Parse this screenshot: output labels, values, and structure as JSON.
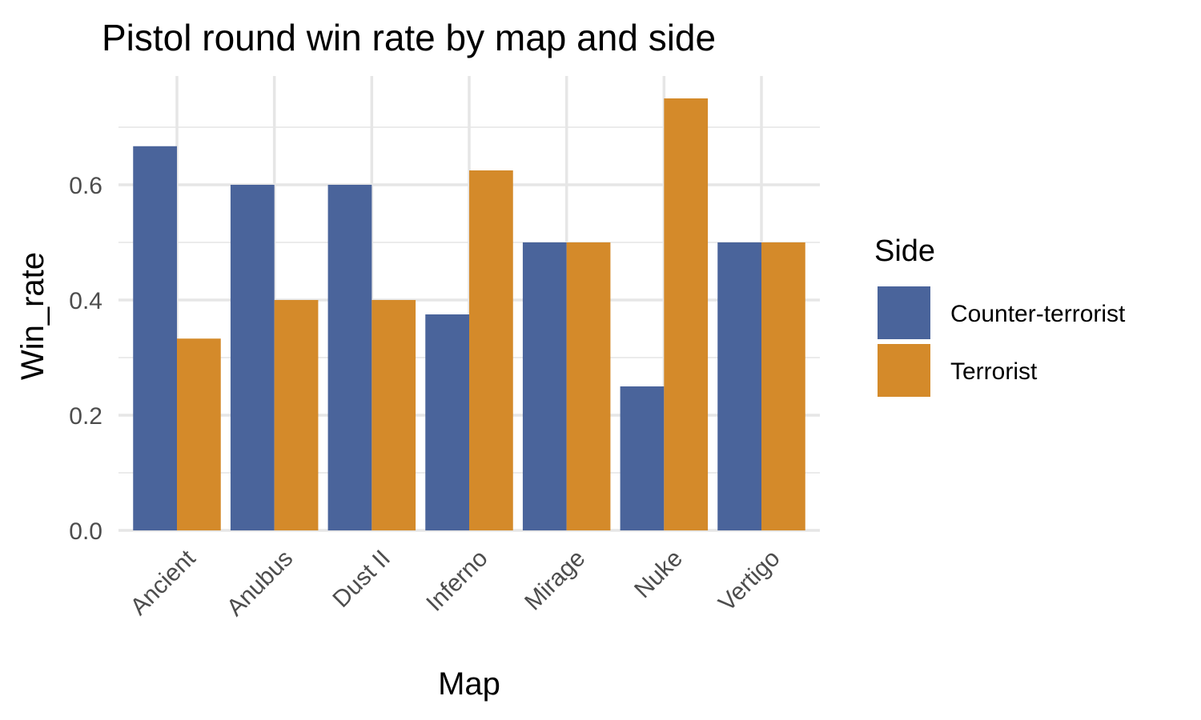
{
  "chart_data": {
    "type": "bar",
    "title": "Pistol round win rate by map and side",
    "xlabel": "Map",
    "ylabel": "Win_rate",
    "categories": [
      "Ancient",
      "Anubus",
      "Dust II",
      "Inferno",
      "Mirage",
      "Nuke",
      "Vertigo"
    ],
    "series": [
      {
        "name": "Counter-terrorist",
        "color": "#4a649b",
        "values": [
          0.667,
          0.6,
          0.6,
          0.375,
          0.5,
          0.25,
          0.5
        ]
      },
      {
        "name": "Terrorist",
        "color": "#d48a2a",
        "values": [
          0.333,
          0.4,
          0.4,
          0.625,
          0.5,
          0.75,
          0.5
        ]
      }
    ],
    "ylim": [
      0,
      0.75
    ],
    "yticks": [
      "0.0",
      "0.2",
      "0.4",
      "0.6"
    ],
    "grid": true,
    "legend": {
      "title": "Side",
      "position": "right"
    }
  }
}
